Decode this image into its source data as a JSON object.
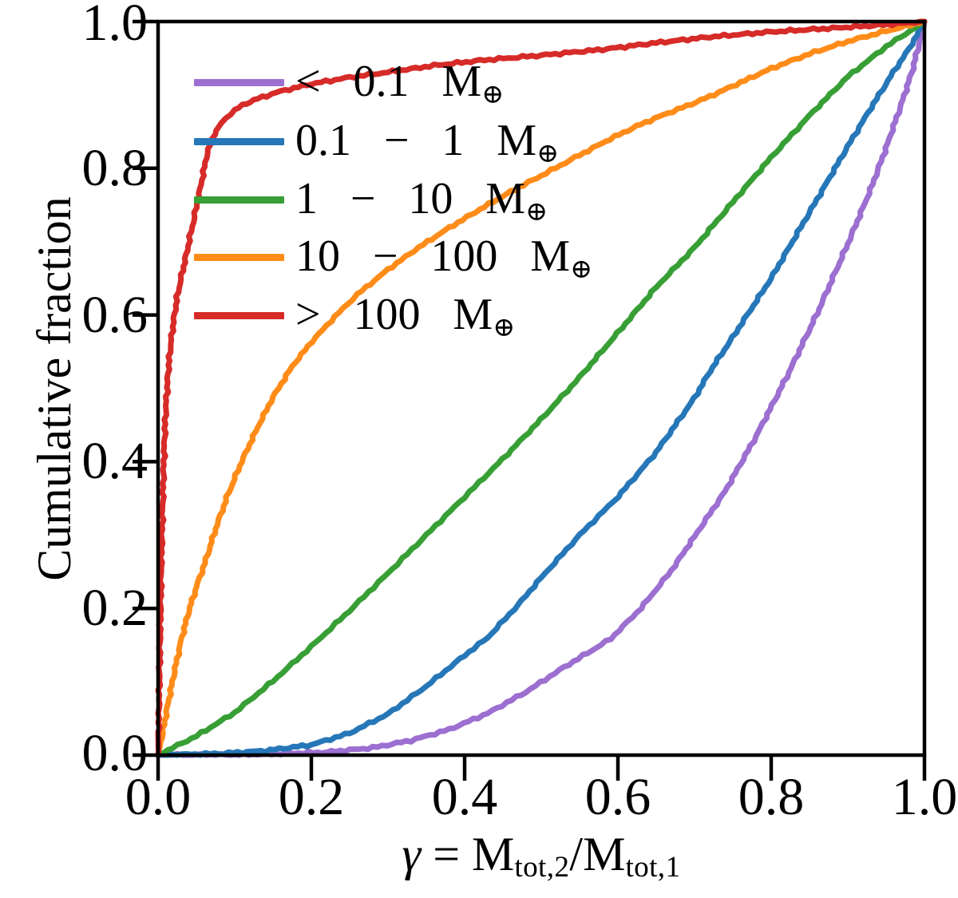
{
  "chart_data": {
    "type": "line",
    "subtype": "cumulative-distribution",
    "title": "",
    "ylabel": "Cumulative fraction",
    "xlabel_parts": {
      "gamma": "γ",
      "eq": " = ",
      "m2": "M",
      "sub2": "tot,2",
      "slash": "/",
      "m1": "M",
      "sub1": "tot,1"
    },
    "xlim": [
      0.0,
      1.0
    ],
    "ylim": [
      0.0,
      1.0
    ],
    "grid": false,
    "legend_position": "upper-left-inside",
    "x_tick_labels": [
      "0.0",
      "0.2",
      "0.4",
      "0.6",
      "0.8",
      "1.0"
    ],
    "y_tick_labels": [
      "0.0",
      "0.2",
      "0.4",
      "0.6",
      "0.8",
      "1.0"
    ],
    "x_ticks": [
      0.0,
      0.2,
      0.4,
      0.6,
      0.8,
      1.0
    ],
    "y_ticks": [
      0.0,
      0.2,
      0.4,
      0.6,
      0.8,
      1.0
    ],
    "axis_color": "#000000",
    "series": [
      {
        "key": "lt-0p1",
        "name": "< 0.1 M⊕",
        "legend_pre": "< 0.1",
        "unit": "M",
        "unit_sub": "⊕",
        "color": "#9c6fd1",
        "points": [
          [
            0,
            0
          ],
          [
            0.1,
            0.0005
          ],
          [
            0.16,
            0.002
          ],
          [
            0.22,
            0.004
          ],
          [
            0.28,
            0.01
          ],
          [
            0.33,
            0.02
          ],
          [
            0.38,
            0.035
          ],
          [
            0.43,
            0.057
          ],
          [
            0.48,
            0.086
          ],
          [
            0.53,
            0.12
          ],
          [
            0.59,
            0.158
          ],
          [
            0.63,
            0.2
          ],
          [
            0.67,
            0.252
          ],
          [
            0.7,
            0.298
          ],
          [
            0.74,
            0.36
          ],
          [
            0.78,
            0.434
          ],
          [
            0.82,
            0.515
          ],
          [
            0.86,
            0.602
          ],
          [
            0.9,
            0.697
          ],
          [
            0.93,
            0.772
          ],
          [
            0.95,
            0.828
          ],
          [
            0.97,
            0.888
          ],
          [
            0.985,
            0.936
          ],
          [
            1,
            1
          ]
        ]
      },
      {
        "key": "0p1-1",
        "name": "0.1 − 1 M⊕",
        "legend_pre": "0.1 − 1",
        "unit": "M",
        "unit_sub": "⊕",
        "color": "#2677b8",
        "points": [
          [
            0,
            0
          ],
          [
            0.08,
            0.002
          ],
          [
            0.14,
            0.006
          ],
          [
            0.2,
            0.014
          ],
          [
            0.25,
            0.03
          ],
          [
            0.3,
            0.056
          ],
          [
            0.35,
            0.094
          ],
          [
            0.4,
            0.136
          ],
          [
            0.43,
            0.16
          ],
          [
            0.47,
            0.205
          ],
          [
            0.5,
            0.242
          ],
          [
            0.55,
            0.3
          ],
          [
            0.6,
            0.352
          ],
          [
            0.65,
            0.413
          ],
          [
            0.7,
            0.487
          ],
          [
            0.72,
            0.523
          ],
          [
            0.75,
            0.57
          ],
          [
            0.8,
            0.65
          ],
          [
            0.86,
            0.758
          ],
          [
            0.9,
            0.83
          ],
          [
            0.93,
            0.882
          ],
          [
            0.96,
            0.932
          ],
          [
            0.98,
            0.963
          ],
          [
            1,
            1
          ]
        ]
      },
      {
        "key": "1-10",
        "name": "1 − 10 M⊕",
        "legend_pre": "1 − 10",
        "unit": "M",
        "unit_sub": "⊕",
        "color": "#379f35",
        "points": [
          [
            0,
            0
          ],
          [
            0.05,
            0.026
          ],
          [
            0.1,
            0.058
          ],
          [
            0.15,
            0.101
          ],
          [
            0.2,
            0.148
          ],
          [
            0.25,
            0.197
          ],
          [
            0.3,
            0.248
          ],
          [
            0.35,
            0.3
          ],
          [
            0.4,
            0.352
          ],
          [
            0.45,
            0.404
          ],
          [
            0.5,
            0.458
          ],
          [
            0.55,
            0.515
          ],
          [
            0.6,
            0.576
          ],
          [
            0.65,
            0.638
          ],
          [
            0.7,
            0.692
          ],
          [
            0.75,
            0.754
          ],
          [
            0.8,
            0.815
          ],
          [
            0.85,
            0.872
          ],
          [
            0.9,
            0.925
          ],
          [
            0.95,
            0.966
          ],
          [
            1,
            1
          ]
        ]
      },
      {
        "key": "10-100",
        "name": "10 − 100 M⊕",
        "legend_pre": "10 − 100",
        "unit": "M",
        "unit_sub": "⊕",
        "color": "#ff8c19",
        "points": [
          [
            0,
            0
          ],
          [
            0.006,
            0.03
          ],
          [
            0.012,
            0.065
          ],
          [
            0.02,
            0.107
          ],
          [
            0.03,
            0.156
          ],
          [
            0.04,
            0.196
          ],
          [
            0.05,
            0.229
          ],
          [
            0.063,
            0.268
          ],
          [
            0.075,
            0.308
          ],
          [
            0.09,
            0.352
          ],
          [
            0.109,
            0.4
          ],
          [
            0.13,
            0.447
          ],
          [
            0.15,
            0.488
          ],
          [
            0.175,
            0.53
          ],
          [
            0.2,
            0.563
          ],
          [
            0.23,
            0.597
          ],
          [
            0.26,
            0.628
          ],
          [
            0.3,
            0.662
          ],
          [
            0.34,
            0.692
          ],
          [
            0.38,
            0.719
          ],
          [
            0.42,
            0.744
          ],
          [
            0.46,
            0.768
          ],
          [
            0.5,
            0.79
          ],
          [
            0.55,
            0.818
          ],
          [
            0.59,
            0.84
          ],
          [
            0.63,
            0.86
          ],
          [
            0.66,
            0.873
          ],
          [
            0.69,
            0.885
          ],
          [
            0.72,
            0.898
          ],
          [
            0.76,
            0.917
          ],
          [
            0.8,
            0.936
          ],
          [
            0.85,
            0.956
          ],
          [
            0.9,
            0.973
          ],
          [
            0.95,
            0.987
          ],
          [
            1,
            1
          ]
        ]
      },
      {
        "key": "gt-100",
        "name": "> 100 M⊕",
        "legend_pre": "> 100",
        "unit": "M",
        "unit_sub": "⊕",
        "color": "#d62b28",
        "points": [
          [
            0,
            0
          ],
          [
            0.002,
            0.12
          ],
          [
            0.004,
            0.25
          ],
          [
            0.006,
            0.34
          ],
          [
            0.008,
            0.42
          ],
          [
            0.01,
            0.47
          ],
          [
            0.013,
            0.52
          ],
          [
            0.016,
            0.555
          ],
          [
            0.02,
            0.59
          ],
          [
            0.025,
            0.625
          ],
          [
            0.031,
            0.655
          ],
          [
            0.038,
            0.688
          ],
          [
            0.046,
            0.727
          ],
          [
            0.055,
            0.772
          ],
          [
            0.064,
            0.82
          ],
          [
            0.073,
            0.846
          ],
          [
            0.083,
            0.862
          ],
          [
            0.095,
            0.875
          ],
          [
            0.11,
            0.886
          ],
          [
            0.13,
            0.895
          ],
          [
            0.16,
            0.905
          ],
          [
            0.2,
            0.915
          ],
          [
            0.25,
            0.924
          ],
          [
            0.3,
            0.931
          ],
          [
            0.36,
            0.94
          ],
          [
            0.42,
            0.947
          ],
          [
            0.5,
            0.954
          ],
          [
            0.58,
            0.962
          ],
          [
            0.65,
            0.971
          ],
          [
            0.72,
            0.979
          ],
          [
            0.8,
            0.986
          ],
          [
            0.88,
            0.991
          ],
          [
            0.94,
            0.995
          ],
          [
            1,
            1
          ]
        ]
      }
    ]
  }
}
